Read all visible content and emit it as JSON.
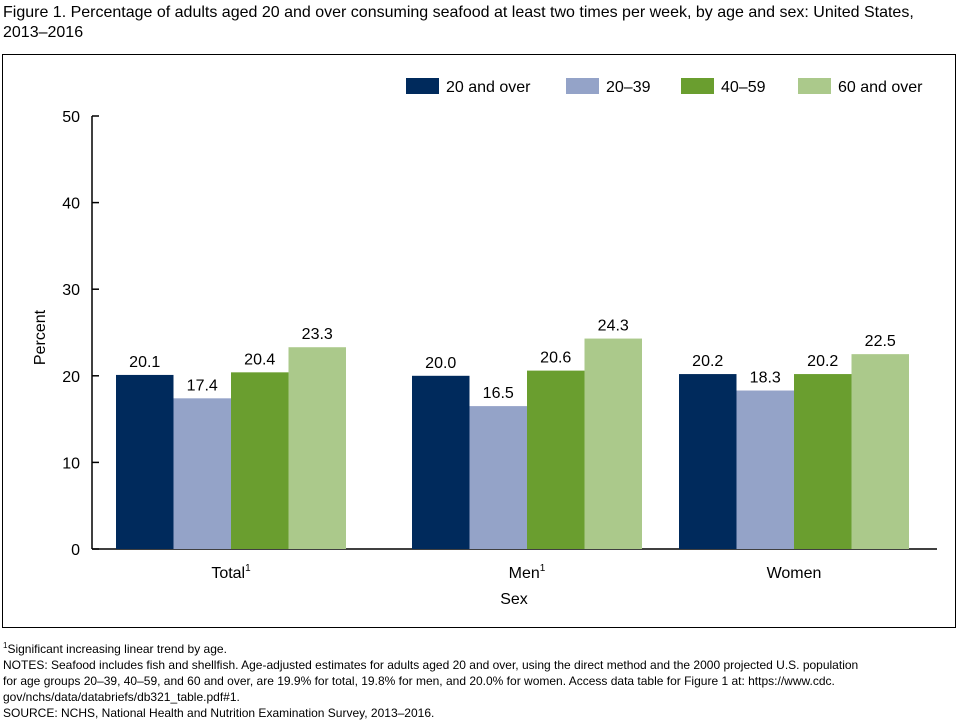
{
  "title": "Figure 1. Percentage of adults aged 20 and over consuming seafood at least two times per week, by age and sex: United States, 2013–2016",
  "chart_data": {
    "type": "bar",
    "categories": [
      "Total",
      "Men",
      "Women"
    ],
    "category_superscripts": [
      "1",
      "1",
      ""
    ],
    "series": [
      {
        "name": "20 and over",
        "color": "#002a5c",
        "values": [
          20.1,
          20.0,
          20.2
        ],
        "labels": [
          "20.1",
          "20.0",
          "20.2"
        ]
      },
      {
        "name": "20–39",
        "color": "#94a3c8",
        "values": [
          17.4,
          16.5,
          18.3
        ],
        "labels": [
          "17.4",
          "16.5",
          "18.3"
        ]
      },
      {
        "name": "40–59",
        "color": "#6a9e2f",
        "values": [
          20.4,
          20.6,
          20.2
        ],
        "labels": [
          "20.4",
          "20.6",
          "20.2"
        ]
      },
      {
        "name": "60 and over",
        "color": "#abc98b",
        "values": [
          23.3,
          24.3,
          22.5
        ],
        "labels": [
          "23.3",
          "24.3",
          "22.5"
        ]
      }
    ],
    "xlabel": "Sex",
    "ylabel": "Percent",
    "ylim": [
      0,
      50
    ],
    "yticks": [
      0,
      10,
      20,
      30,
      40,
      50
    ],
    "legend_position": "top-right",
    "grid": false
  },
  "notes": {
    "footnote_marker": "1",
    "footnote": "Significant increasing linear trend by age.",
    "notes_lines": [
      "NOTES: Seafood includes fish and shellfish. Age-adjusted estimates for adults aged 20 and over, using the direct method and the 2000 projected U.S. population",
      "for age groups 20–39, 40–59, and 60 and over, are 19.9% for total, 19.8% for men, and 20.0% for women. Access data table for Figure 1 at: https://www.cdc.",
      "gov/nchs/data/databriefs/db321_table.pdf#1."
    ],
    "source": "SOURCE: NCHS, National Health and Nutrition Examination Survey, 2013–2016."
  }
}
